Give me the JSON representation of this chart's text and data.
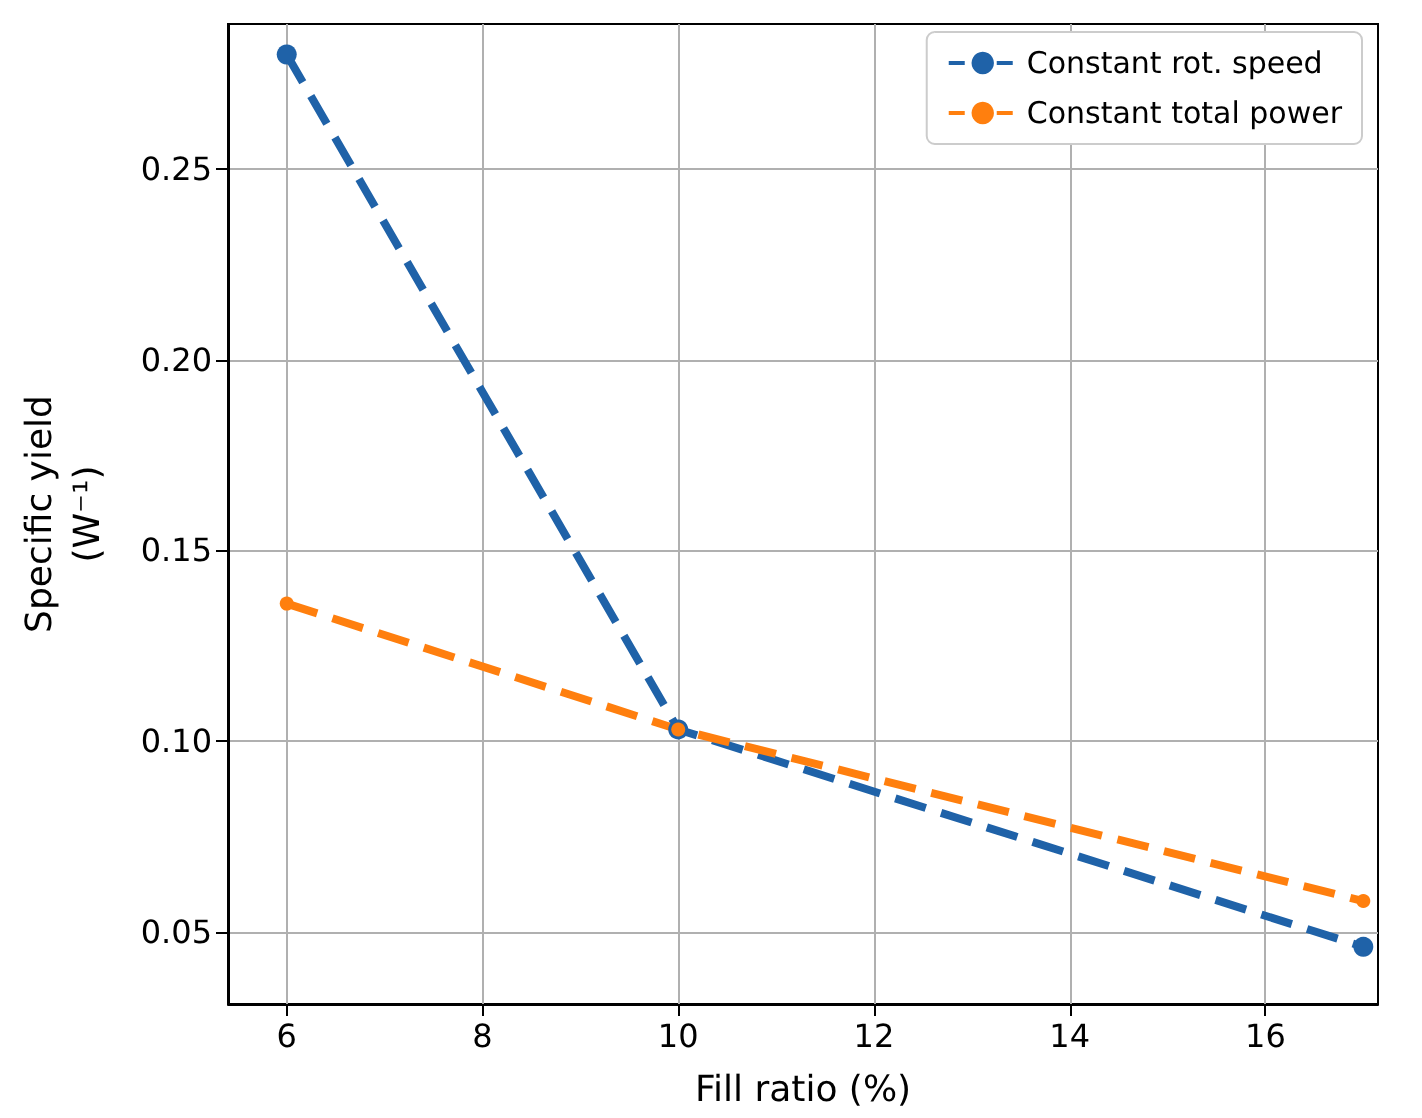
{
  "chart_data": {
    "type": "line",
    "xlabel": "Fill ratio (%)",
    "ylabel": "Specific yield\n(W⁻¹)",
    "x": [
      6,
      10,
      17
    ],
    "series": [
      {
        "name": "Constant rot. speed",
        "color": "#1f62a8",
        "values": [
          0.28,
          0.103,
          0.046
        ]
      },
      {
        "name": "Constant total power",
        "color": "#ff7f0e",
        "values": [
          0.136,
          0.103,
          0.058
        ]
      }
    ],
    "xlim": [
      5.4,
      17.15
    ],
    "ylim": [
      0.031,
      0.288
    ],
    "xticks": [
      6,
      8,
      10,
      12,
      14,
      16
    ],
    "yticks": [
      {
        "value": 0.05,
        "label": "0.05"
      },
      {
        "value": 0.1,
        "label": "0.10"
      },
      {
        "value": 0.15,
        "label": "0.15"
      },
      {
        "value": 0.2,
        "label": "0.20"
      },
      {
        "value": 0.25,
        "label": "0.25"
      }
    ],
    "grid": true,
    "legend": "top right",
    "marker": "circle",
    "line_style": "dashed"
  }
}
